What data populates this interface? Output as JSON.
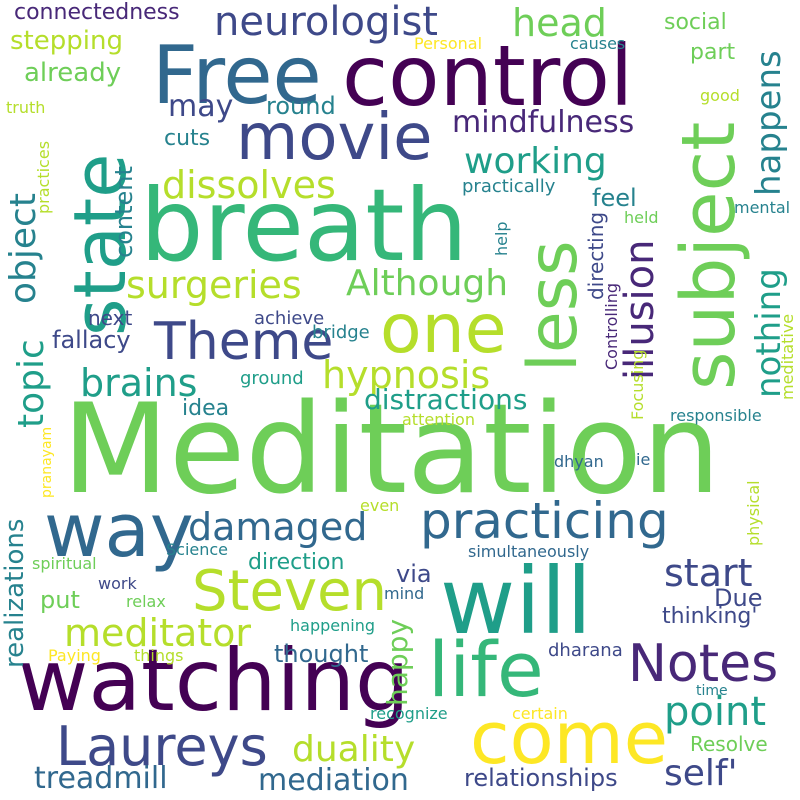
{
  "words": {
    "meditation": "Meditation",
    "breath": "breath",
    "control": "control",
    "free": "Free",
    "will": "will",
    "watching": "watching",
    "state": "state",
    "subject": "subject",
    "movie": "movie",
    "less": "less",
    "one": "one",
    "way": "way",
    "life": "life",
    "come": "come",
    "notes": "Notes",
    "steven": "Steven",
    "laureys": "Laureys",
    "practicing": "practicing",
    "theme": "Theme",
    "neurologist": "neurologist",
    "head": "head",
    "happens": "happens",
    "mindfulness": "mindfulness",
    "working": "working",
    "dissolves": "dissolves",
    "surgeries": "surgeries",
    "although": "Although",
    "hypnosis": "hypnosis",
    "brains": "brains",
    "damaged": "damaged",
    "meditator": "meditator",
    "duality": "duality",
    "mediation": "mediation",
    "treadmill": "treadmill",
    "self": "self'",
    "point": "point",
    "start": "start",
    "illusion": "illusion",
    "nothing": "nothing",
    "object": "object",
    "topic": "topic",
    "distractions": "distractions",
    "content": "content",
    "realizations": "realizations",
    "relationships": "relationships",
    "happy": "happy",
    "connectedness": "connectedness",
    "stepping": "stepping",
    "already": "already",
    "may": "may",
    "round": "round",
    "cuts": "cuts",
    "social": "social",
    "part": "part",
    "causes": "causes",
    "personal": "Personal",
    "good": "good",
    "truth": "truth",
    "practices": "practices",
    "practically": "practically",
    "feel": "feel",
    "held": "held",
    "mental": "mental",
    "help": "help",
    "directing": "directing",
    "controlling": "Controlling",
    "next": "next",
    "achieve": "achieve",
    "fallacy": "fallacy",
    "bridge": "bridge",
    "ground": "ground",
    "idea": "idea",
    "attention": "attention",
    "focusing": "Focusing",
    "meditative": "meditative",
    "responsible": "responsible",
    "pranayam": "pranayam",
    "dhyan": "dhyan",
    "ie": "ie",
    "physical": "physical",
    "even": "even",
    "science": "Science",
    "simultaneously": "simultaneously",
    "spiritual": "spiritual",
    "work": "work",
    "direction": "direction",
    "via": "via",
    "due": "Due",
    "put": "put",
    "relax": "relax",
    "mind": "mind",
    "thinking": "thinking'",
    "happening": "happening",
    "thought": "thought",
    "paying": "Paying",
    "things": "things",
    "dharana": "dharana",
    "time": "time",
    "recognize": "recognize",
    "certain": "certain",
    "resolve": "Resolve"
  }
}
